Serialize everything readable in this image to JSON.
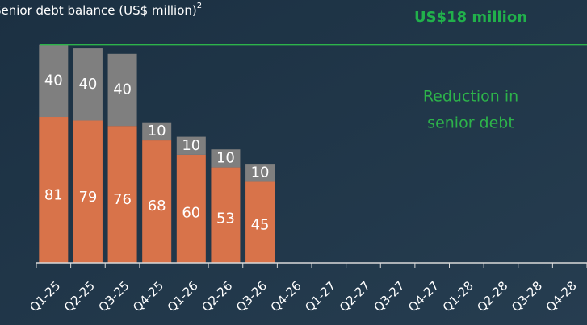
{
  "chart_data": {
    "type": "stacked_bar",
    "title": "Senior debt balance (US$ million)",
    "title_footnote": "2",
    "annotation_heading": "US$18 million",
    "annotation_lines": [
      "Reduction in",
      "senior debt"
    ],
    "categories": [
      "Q1-25",
      "Q2-25",
      "Q3-25",
      "Q4-25",
      "Q1-26",
      "Q2-26",
      "Q3-26",
      "Q4-26",
      "Q1-27",
      "Q2-27",
      "Q3-27",
      "Q4-27",
      "Q1-28",
      "Q2-28",
      "Q3-28",
      "Q4-28"
    ],
    "series": [
      {
        "color": "#d8734a",
        "values": [
          81,
          79,
          76,
          68,
          60,
          53,
          45,
          null,
          null,
          null,
          null,
          null,
          null,
          null,
          null,
          null
        ]
      },
      {
        "color": "#7f7f7f",
        "values": [
          40,
          40,
          40,
          10,
          10,
          10,
          10,
          null,
          null,
          null,
          null,
          null,
          null,
          null,
          null,
          null
        ]
      }
    ],
    "ylim": [
      0,
      145
    ]
  }
}
